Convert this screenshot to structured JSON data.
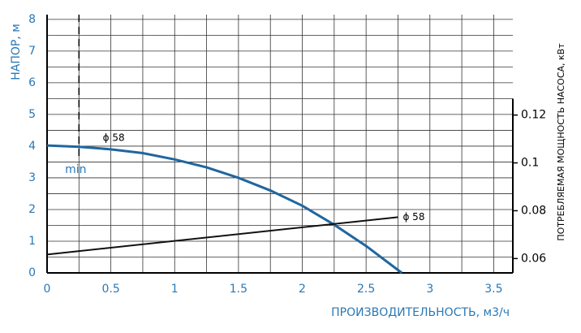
{
  "chart_data": {
    "type": "line",
    "xlabel": "ПРОИЗВОДИТЕЛЬНОСТЬ, м3/ч",
    "ylabel": "НАПОР, м",
    "y2label": "ПОТРЕБЛЯЕМАЯ МОЩНОСТЬ НАСОСА, кВт",
    "xlim": [
      0,
      3.65
    ],
    "xticks": [
      0,
      0.5,
      1,
      1.5,
      2,
      2.5,
      3,
      3.5
    ],
    "x_minor_ticks": [
      0.25,
      0.75,
      1.25,
      1.75,
      2.25,
      2.75,
      3.25
    ],
    "ylim": [
      0,
      8.15
    ],
    "yticks": [
      0,
      1,
      2,
      3,
      4,
      5,
      6,
      7,
      8
    ],
    "y_minor_ticks": [
      0.5,
      1.5,
      2.5,
      3.5,
      4.5,
      5.5,
      6.5,
      7.5
    ],
    "y2lim": [
      0.054,
      0.162
    ],
    "y2ticks": [
      0.06,
      0.08,
      0.1,
      0.12
    ],
    "grid": true,
    "min_line": {
      "label": "min",
      "x": 0.25
    },
    "series": [
      {
        "name": "ϕ 58",
        "color": "#1f66a0",
        "x": [
          0,
          0.25,
          0.5,
          0.75,
          1,
          1.25,
          1.5,
          1.75,
          2,
          2.25,
          2.5,
          2.78
        ],
        "values": [
          4.02,
          3.98,
          3.9,
          3.78,
          3.58,
          3.33,
          3.0,
          2.6,
          2.12,
          1.52,
          0.85,
          0
        ]
      },
      {
        "name": "ϕ 58",
        "color": "#111111",
        "axis": "y2",
        "x": [
          0,
          2.75
        ],
        "values": [
          0.0617,
          0.0773
        ]
      }
    ]
  }
}
